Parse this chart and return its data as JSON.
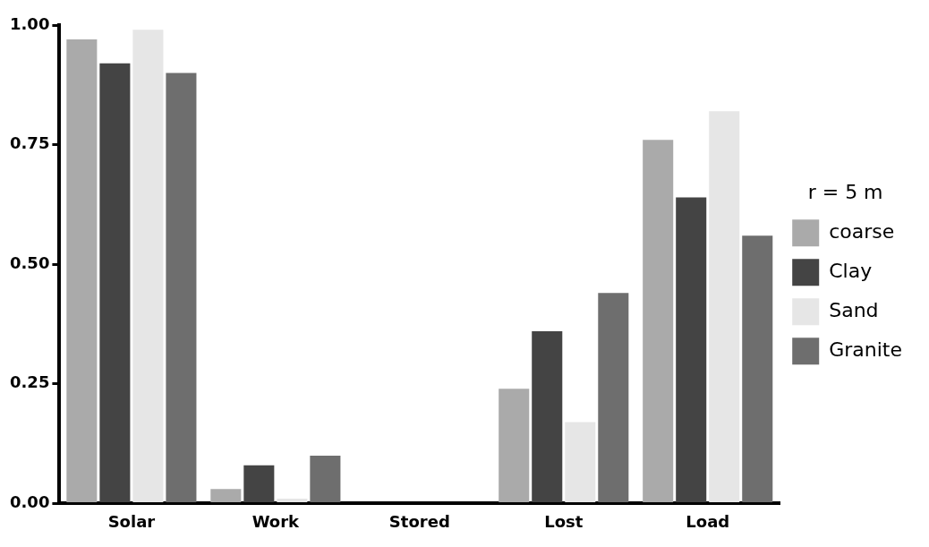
{
  "chart_data": {
    "type": "bar",
    "categories": [
      "Solar",
      "Work",
      "Stored",
      "Lost",
      "Load"
    ],
    "series": [
      {
        "name": "coarse",
        "color": "#aaaaaa",
        "values": [
          0.97,
          0.03,
          0,
          0.24,
          0.76
        ]
      },
      {
        "name": "Clay",
        "color": "#444444",
        "values": [
          0.92,
          0.08,
          0,
          0.36,
          0.64
        ]
      },
      {
        "name": "Sand",
        "color": "#e6e6e6",
        "values": [
          0.99,
          0.01,
          0,
          0.17,
          0.82
        ]
      },
      {
        "name": "Granite",
        "color": "#6e6e6e",
        "values": [
          0.9,
          0.1,
          0,
          0.44,
          0.56
        ]
      }
    ],
    "ylim": [
      0,
      1
    ],
    "yticks": [
      {
        "value": 0,
        "label": "0.00"
      },
      {
        "value": 0.25,
        "label": "0.25"
      },
      {
        "value": 0.5,
        "label": "0.50"
      },
      {
        "value": 0.75,
        "label": "0.75"
      },
      {
        "value": 1,
        "label": "1.00"
      }
    ],
    "grid": false,
    "legend": "right",
    "legend_title": "r = 5 m"
  }
}
